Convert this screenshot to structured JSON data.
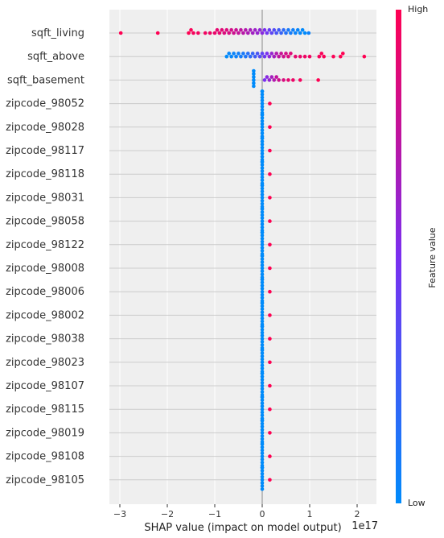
{
  "chart_data": {
    "type": "scatter",
    "subtype": "shap_beeswarm_summary",
    "xlabel": "SHAP value (impact on model output)",
    "x_offset_label": "1e17",
    "x_scale_exponent": 17,
    "xlim": [
      -3.3,
      2.4
    ],
    "xticks": [
      -3,
      -2,
      -1,
      0,
      1,
      2
    ],
    "xtick_labels": [
      "−3",
      "−2",
      "−1",
      "0",
      "1",
      "2"
    ],
    "grid": true,
    "colorbar": {
      "title": "Feature value",
      "high_label": "High",
      "low_label": "Low",
      "low_color": "#008bfb",
      "high_color": "#ff0052"
    },
    "features": [
      "sqft_living",
      "sqft_above",
      "sqft_basement",
      "zipcode_98052",
      "zipcode_98028",
      "zipcode_98117",
      "zipcode_98118",
      "zipcode_98031",
      "zipcode_98058",
      "zipcode_98122",
      "zipcode_98008",
      "zipcode_98006",
      "zipcode_98002",
      "zipcode_98038",
      "zipcode_98023",
      "zipcode_98107",
      "zipcode_98115",
      "zipcode_98019",
      "zipcode_98108",
      "zipcode_98105"
    ],
    "series": [
      {
        "feature": "sqft_living",
        "points": [
          {
            "x": -2.98,
            "v": 1.0
          },
          {
            "x": -2.2,
            "v": 1.0
          },
          {
            "x": -1.55,
            "v": 1.0
          },
          {
            "x": -1.5,
            "v": 0.98
          },
          {
            "x": -1.45,
            "v": 0.97
          },
          {
            "x": -1.35,
            "v": 0.96
          },
          {
            "x": -1.2,
            "v": 0.95
          },
          {
            "x": -1.1,
            "v": 0.93
          },
          {
            "x": -1.0,
            "v": 0.92
          },
          {
            "x": -0.95,
            "v": 0.9
          },
          {
            "x": -0.9,
            "v": 0.9
          },
          {
            "x": -0.85,
            "v": 0.88
          },
          {
            "x": -0.8,
            "v": 0.86
          },
          {
            "x": -0.75,
            "v": 0.86
          },
          {
            "x": -0.7,
            "v": 0.84
          },
          {
            "x": -0.65,
            "v": 0.82
          },
          {
            "x": -0.6,
            "v": 0.8
          },
          {
            "x": -0.55,
            "v": 0.78
          },
          {
            "x": -0.5,
            "v": 0.76
          },
          {
            "x": -0.45,
            "v": 0.74
          },
          {
            "x": -0.4,
            "v": 0.72
          },
          {
            "x": -0.35,
            "v": 0.7
          },
          {
            "x": -0.3,
            "v": 0.68
          },
          {
            "x": -0.25,
            "v": 0.66
          },
          {
            "x": -0.2,
            "v": 0.64
          },
          {
            "x": -0.15,
            "v": 0.62
          },
          {
            "x": -0.1,
            "v": 0.6
          },
          {
            "x": -0.05,
            "v": 0.58
          },
          {
            "x": 0.0,
            "v": 0.55
          },
          {
            "x": 0.05,
            "v": 0.5
          },
          {
            "x": 0.1,
            "v": 0.46
          },
          {
            "x": 0.15,
            "v": 0.42
          },
          {
            "x": 0.2,
            "v": 0.38
          },
          {
            "x": 0.25,
            "v": 0.34
          },
          {
            "x": 0.3,
            "v": 0.3
          },
          {
            "x": 0.35,
            "v": 0.26
          },
          {
            "x": 0.4,
            "v": 0.22
          },
          {
            "x": 0.45,
            "v": 0.18
          },
          {
            "x": 0.5,
            "v": 0.14
          },
          {
            "x": 0.55,
            "v": 0.1
          },
          {
            "x": 0.6,
            "v": 0.08
          },
          {
            "x": 0.65,
            "v": 0.06
          },
          {
            "x": 0.7,
            "v": 0.04
          },
          {
            "x": 0.75,
            "v": 0.03
          },
          {
            "x": 0.8,
            "v": 0.02
          },
          {
            "x": 0.85,
            "v": 0.01
          },
          {
            "x": 0.9,
            "v": 0.0
          },
          {
            "x": 0.98,
            "v": 0.05
          }
        ]
      },
      {
        "feature": "sqft_above",
        "points": [
          {
            "x": -0.75,
            "v": 0.0
          },
          {
            "x": -0.7,
            "v": 0.02
          },
          {
            "x": -0.65,
            "v": 0.02
          },
          {
            "x": -0.6,
            "v": 0.04
          },
          {
            "x": -0.55,
            "v": 0.05
          },
          {
            "x": -0.5,
            "v": 0.06
          },
          {
            "x": -0.45,
            "v": 0.08
          },
          {
            "x": -0.4,
            "v": 0.1
          },
          {
            "x": -0.35,
            "v": 0.12
          },
          {
            "x": -0.3,
            "v": 0.15
          },
          {
            "x": -0.25,
            "v": 0.18
          },
          {
            "x": -0.2,
            "v": 0.22
          },
          {
            "x": -0.15,
            "v": 0.26
          },
          {
            "x": -0.1,
            "v": 0.3
          },
          {
            "x": -0.05,
            "v": 0.35
          },
          {
            "x": 0.0,
            "v": 0.4
          },
          {
            "x": 0.05,
            "v": 0.45
          },
          {
            "x": 0.1,
            "v": 0.5
          },
          {
            "x": 0.15,
            "v": 0.55
          },
          {
            "x": 0.2,
            "v": 0.6
          },
          {
            "x": 0.25,
            "v": 0.65
          },
          {
            "x": 0.3,
            "v": 0.7
          },
          {
            "x": 0.35,
            "v": 0.74
          },
          {
            "x": 0.4,
            "v": 0.78
          },
          {
            "x": 0.45,
            "v": 0.8
          },
          {
            "x": 0.5,
            "v": 0.82
          },
          {
            "x": 0.55,
            "v": 0.85
          },
          {
            "x": 0.6,
            "v": 0.87
          },
          {
            "x": 0.7,
            "v": 0.9
          },
          {
            "x": 0.8,
            "v": 0.92
          },
          {
            "x": 0.9,
            "v": 0.94
          },
          {
            "x": 1.0,
            "v": 0.95
          },
          {
            "x": 1.2,
            "v": 0.97
          },
          {
            "x": 1.25,
            "v": 0.98
          },
          {
            "x": 1.3,
            "v": 0.98
          },
          {
            "x": 1.5,
            "v": 0.99
          },
          {
            "x": 1.65,
            "v": 1.0
          },
          {
            "x": 1.7,
            "v": 1.0
          },
          {
            "x": 2.15,
            "v": 1.0
          }
        ]
      },
      {
        "feature": "sqft_basement",
        "points": [
          {
            "x": -0.18,
            "v": 0.0
          },
          {
            "x": -0.18,
            "v": 0.0
          },
          {
            "x": -0.18,
            "v": 0.0
          },
          {
            "x": -0.18,
            "v": 0.0
          },
          {
            "x": -0.18,
            "v": 0.0
          },
          {
            "x": -0.18,
            "v": 0.0
          },
          {
            "x": 0.05,
            "v": 0.5
          },
          {
            "x": 0.1,
            "v": 0.55
          },
          {
            "x": 0.15,
            "v": 0.6
          },
          {
            "x": 0.2,
            "v": 0.65
          },
          {
            "x": 0.25,
            "v": 0.7
          },
          {
            "x": 0.3,
            "v": 0.75
          },
          {
            "x": 0.35,
            "v": 0.8
          },
          {
            "x": 0.45,
            "v": 0.85
          },
          {
            "x": 0.55,
            "v": 0.9
          },
          {
            "x": 0.65,
            "v": 0.93
          },
          {
            "x": 0.8,
            "v": 0.96
          },
          {
            "x": 1.18,
            "v": 1.0
          }
        ]
      },
      {
        "feature": "zipcode_98052",
        "points": [
          {
            "x": 0.0,
            "v": 0.0,
            "n": 9
          },
          {
            "x": 0.16,
            "v": 1.0
          }
        ]
      },
      {
        "feature": "zipcode_98028",
        "points": [
          {
            "x": 0.0,
            "v": 0.0,
            "n": 9
          },
          {
            "x": 0.16,
            "v": 1.0
          }
        ]
      },
      {
        "feature": "zipcode_98117",
        "points": [
          {
            "x": 0.0,
            "v": 0.0,
            "n": 9
          },
          {
            "x": 0.16,
            "v": 1.0
          }
        ]
      },
      {
        "feature": "zipcode_98118",
        "points": [
          {
            "x": 0.0,
            "v": 0.0,
            "n": 9
          },
          {
            "x": 0.16,
            "v": 1.0
          }
        ]
      },
      {
        "feature": "zipcode_98031",
        "points": [
          {
            "x": 0.0,
            "v": 0.0,
            "n": 9
          },
          {
            "x": 0.16,
            "v": 1.0
          }
        ]
      },
      {
        "feature": "zipcode_98058",
        "points": [
          {
            "x": 0.0,
            "v": 0.0,
            "n": 9
          },
          {
            "x": 0.16,
            "v": 1.0
          }
        ]
      },
      {
        "feature": "zipcode_98122",
        "points": [
          {
            "x": 0.0,
            "v": 0.0,
            "n": 9
          },
          {
            "x": 0.16,
            "v": 1.0
          }
        ]
      },
      {
        "feature": "zipcode_98008",
        "points": [
          {
            "x": 0.0,
            "v": 0.0,
            "n": 9
          },
          {
            "x": 0.16,
            "v": 1.0
          }
        ]
      },
      {
        "feature": "zipcode_98006",
        "points": [
          {
            "x": 0.0,
            "v": 0.0,
            "n": 9
          },
          {
            "x": 0.16,
            "v": 1.0
          }
        ]
      },
      {
        "feature": "zipcode_98002",
        "points": [
          {
            "x": 0.0,
            "v": 0.0,
            "n": 9
          },
          {
            "x": 0.16,
            "v": 1.0
          }
        ]
      },
      {
        "feature": "zipcode_98038",
        "points": [
          {
            "x": 0.0,
            "v": 0.0,
            "n": 9
          },
          {
            "x": 0.16,
            "v": 1.0
          }
        ]
      },
      {
        "feature": "zipcode_98023",
        "points": [
          {
            "x": 0.0,
            "v": 0.0,
            "n": 9
          },
          {
            "x": 0.16,
            "v": 1.0
          }
        ]
      },
      {
        "feature": "zipcode_98107",
        "points": [
          {
            "x": 0.0,
            "v": 0.0,
            "n": 9
          },
          {
            "x": 0.16,
            "v": 1.0
          }
        ]
      },
      {
        "feature": "zipcode_98115",
        "points": [
          {
            "x": 0.0,
            "v": 0.0,
            "n": 9
          },
          {
            "x": 0.16,
            "v": 1.0
          }
        ]
      },
      {
        "feature": "zipcode_98019",
        "points": [
          {
            "x": 0.0,
            "v": 0.0,
            "n": 9
          },
          {
            "x": 0.16,
            "v": 1.0
          }
        ]
      },
      {
        "feature": "zipcode_98108",
        "points": [
          {
            "x": 0.0,
            "v": 0.0,
            "n": 9
          },
          {
            "x": 0.16,
            "v": 1.0
          }
        ]
      },
      {
        "feature": "zipcode_98105",
        "points": [
          {
            "x": 0.0,
            "v": 0.0,
            "n": 9
          },
          {
            "x": 0.16,
            "v": 1.0
          }
        ]
      }
    ]
  }
}
